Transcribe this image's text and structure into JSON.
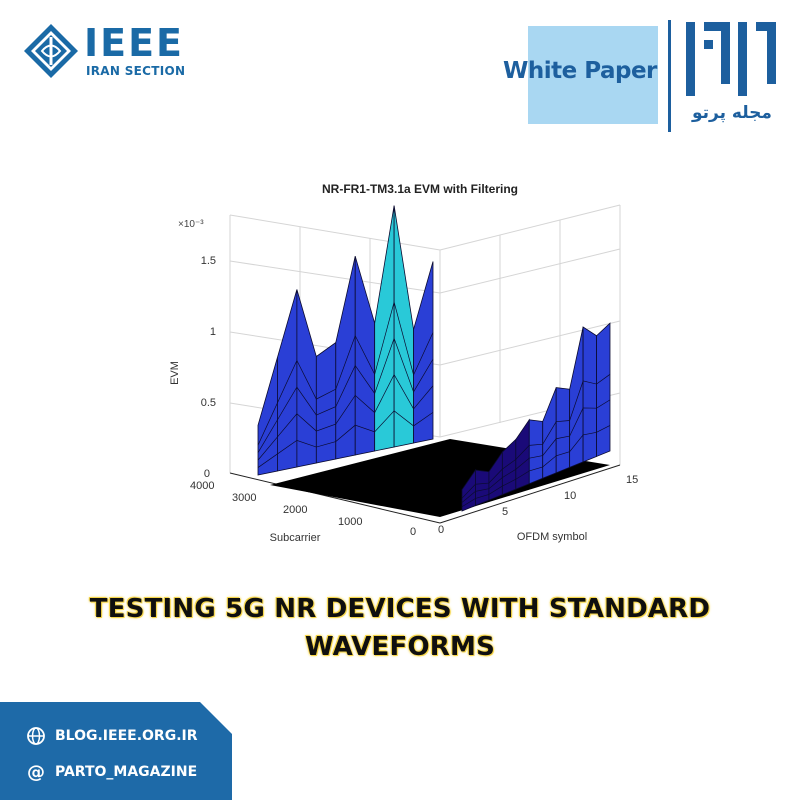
{
  "header": {
    "org_logo_text": "IEEE",
    "org_section": "IRAN SECTION",
    "badge": "White Paper",
    "magazine_name": "مجله پرتو"
  },
  "chart_data": {
    "type": "surface3d",
    "title": "NR-FR1-TM3.1a EVM with Filtering",
    "zlabel": "EVM",
    "xlabel": "Subcarrier",
    "ylabel": "OFDM symbol",
    "z_multiplier": "×10⁻³",
    "z_ticks": [
      "0",
      "0.5",
      "1",
      "1.5"
    ],
    "x_ticks": [
      "4000",
      "3000",
      "2000",
      "1000",
      "0"
    ],
    "y_ticks": [
      "0",
      "5",
      "10",
      "15"
    ],
    "zlim": [
      0,
      1.7
    ],
    "subcarrier_range": [
      0,
      4000
    ],
    "ofdm_symbol_range": [
      0,
      14
    ],
    "peaks_high_subcarrier_edge": [
      0.35,
      0.8,
      1.25,
      0.75,
      0.82,
      1.4,
      0.9,
      1.7,
      0.8,
      1.25
    ],
    "peaks_low_subcarrier_edge": [
      0.15,
      0.25,
      0.2,
      0.3,
      0.35,
      0.45,
      0.4,
      0.6,
      0.55,
      0.95,
      0.85,
      0.9
    ],
    "colors": {
      "low": "#1a0a78",
      "mid": "#2a3fd6",
      "high": "#29c9d8"
    }
  },
  "headline": {
    "line1": "TESTING 5G NR DEVICES WITH STANDARD",
    "line2": "WAVEFORMS"
  },
  "footer": {
    "blog": "BLOG.IEEE.ORG.IR",
    "handle": "PARTO_MAGAZINE",
    "globe_icon": "globe-icon",
    "at_icon": "at-icon"
  }
}
